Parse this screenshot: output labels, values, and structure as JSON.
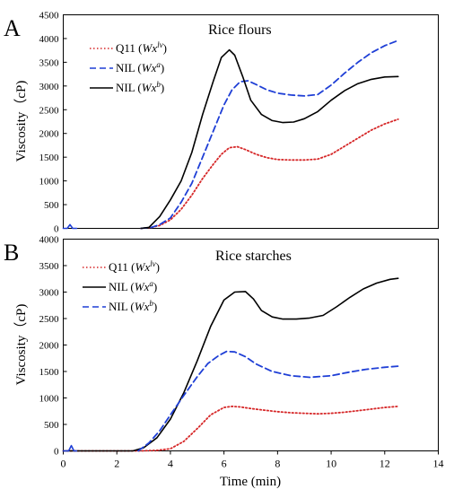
{
  "figure": {
    "xlabel": "Time (min)",
    "ylabel": "Viscosity（cP)"
  },
  "chart_data": [
    {
      "panel": "A",
      "type": "line",
      "title": "Rice flours",
      "xlabel": "",
      "ylabel": "Viscosity（cP)",
      "xlim": [
        0,
        14
      ],
      "ylim": [
        0,
        4500
      ],
      "yticks": [
        0,
        500,
        1000,
        1500,
        2000,
        2500,
        3000,
        3500,
        4000,
        4500
      ],
      "grid": false,
      "legend": "top-left",
      "series": [
        {
          "name": "Q11 (Wx^lv)",
          "name_parts": [
            "Q11 (",
            "Wx",
            "lv",
            ")"
          ],
          "color": "#d62728",
          "style": "dotted",
          "x": [
            2.9,
            3.3,
            3.6,
            4.0,
            4.4,
            4.8,
            5.2,
            5.6,
            5.9,
            6.2,
            6.5,
            6.8,
            7.2,
            7.6,
            8.0,
            8.5,
            9.0,
            9.5,
            10.0,
            10.5,
            11.0,
            11.5,
            12.0,
            12.5
          ],
          "y": [
            0,
            20,
            60,
            180,
            400,
            700,
            1050,
            1350,
            1560,
            1700,
            1720,
            1660,
            1560,
            1490,
            1450,
            1440,
            1440,
            1460,
            1560,
            1730,
            1900,
            2070,
            2200,
            2300
          ]
        },
        {
          "name": "NIL (Wx^a)",
          "name_parts": [
            "NIL (",
            "Wx",
            "a",
            ")"
          ],
          "color": "#1f3fd6",
          "style": "dashed",
          "x": [
            2.9,
            3.3,
            3.6,
            4.0,
            4.4,
            4.8,
            5.2,
            5.6,
            6.0,
            6.3,
            6.6,
            6.9,
            7.2,
            7.6,
            8.0,
            8.5,
            9.0,
            9.5,
            10.0,
            10.5,
            11.0,
            11.5,
            12.0,
            12.5
          ],
          "y": [
            0,
            20,
            80,
            220,
            550,
            950,
            1500,
            2050,
            2600,
            2920,
            3090,
            3110,
            3030,
            2920,
            2850,
            2810,
            2790,
            2820,
            3020,
            3270,
            3500,
            3700,
            3850,
            3960
          ]
        },
        {
          "name": "NIL (Wx^b)",
          "name_parts": [
            "NIL (",
            "Wx",
            "b",
            ")"
          ],
          "color": "#000000",
          "style": "solid",
          "x": [
            2.9,
            3.2,
            3.6,
            4.0,
            4.4,
            4.8,
            5.2,
            5.6,
            5.9,
            6.2,
            6.4,
            6.7,
            7.0,
            7.4,
            7.8,
            8.2,
            8.6,
            9.0,
            9.5,
            10.0,
            10.5,
            11.0,
            11.5,
            12.0,
            12.5
          ],
          "y": [
            0,
            20,
            250,
            600,
            1000,
            1600,
            2400,
            3100,
            3600,
            3760,
            3650,
            3200,
            2700,
            2400,
            2270,
            2230,
            2240,
            2310,
            2460,
            2700,
            2900,
            3050,
            3140,
            3190,
            3200
          ]
        },
        {
          "name": "",
          "color": "#1f3fd6",
          "style": "solid",
          "x": [
            0.0,
            0.15,
            0.25,
            0.35,
            0.5
          ],
          "y": [
            0,
            0,
            80,
            0,
            0
          ]
        }
      ]
    },
    {
      "panel": "B",
      "type": "line",
      "title": "Rice starches",
      "xlabel": "Time (min)",
      "ylabel": "Viscosity（cP)",
      "xlim": [
        0,
        14
      ],
      "ylim": [
        0,
        4000
      ],
      "yticks": [
        0,
        500,
        1000,
        1500,
        2000,
        2500,
        3000,
        3500,
        4000
      ],
      "xticks": [
        0,
        2,
        4,
        6,
        8,
        10,
        12,
        14
      ],
      "grid": false,
      "legend": "top-left",
      "series": [
        {
          "name": "Q11 (Wx^lv)",
          "name_parts": [
            "Q11 (",
            "Wx",
            "lv",
            ")"
          ],
          "color": "#d62728",
          "style": "dotted",
          "x": [
            0.0,
            2.9,
            3.5,
            4.0,
            4.5,
            5.0,
            5.5,
            6.0,
            6.3,
            6.6,
            7.0,
            7.5,
            8.0,
            8.5,
            9.0,
            9.5,
            10.0,
            10.5,
            11.0,
            11.5,
            12.0,
            12.5
          ],
          "y": [
            0,
            0,
            10,
            40,
            180,
            420,
            680,
            820,
            840,
            830,
            800,
            770,
            740,
            720,
            710,
            700,
            710,
            730,
            760,
            790,
            820,
            840
          ]
        },
        {
          "name": "NIL (Wx^a)",
          "name_parts": [
            "NIL (",
            "Wx",
            "a",
            ")"
          ],
          "color": "#000000",
          "style": "solid",
          "x": [
            0.0,
            2.6,
            3.0,
            3.5,
            4.0,
            4.5,
            5.0,
            5.5,
            6.0,
            6.4,
            6.8,
            7.1,
            7.4,
            7.8,
            8.2,
            8.7,
            9.2,
            9.7,
            10.2,
            10.7,
            11.2,
            11.7,
            12.2,
            12.5
          ],
          "y": [
            0,
            0,
            60,
            250,
            600,
            1100,
            1700,
            2350,
            2850,
            3000,
            3010,
            2870,
            2650,
            2530,
            2490,
            2490,
            2510,
            2560,
            2720,
            2900,
            3060,
            3170,
            3240,
            3260
          ]
        },
        {
          "name": "NIL (Wx^b)",
          "name_parts": [
            "NIL (",
            "Wx",
            "b",
            ")"
          ],
          "color": "#1f3fd6",
          "style": "dashed",
          "x": [
            2.8,
            3.2,
            3.6,
            4.0,
            4.5,
            5.0,
            5.4,
            5.8,
            6.1,
            6.4,
            6.8,
            7.2,
            7.8,
            8.5,
            9.2,
            10.0,
            10.7,
            11.3,
            12.0,
            12.5
          ],
          "y": [
            0,
            150,
            380,
            680,
            1050,
            1400,
            1650,
            1800,
            1880,
            1870,
            1780,
            1640,
            1500,
            1420,
            1390,
            1420,
            1490,
            1540,
            1580,
            1600
          ]
        },
        {
          "name": "",
          "color": "#1f3fd6",
          "style": "solid",
          "x": [
            0.0,
            0.2,
            0.3,
            0.4,
            0.5
          ],
          "y": [
            0,
            0,
            100,
            0,
            0
          ]
        }
      ]
    }
  ]
}
